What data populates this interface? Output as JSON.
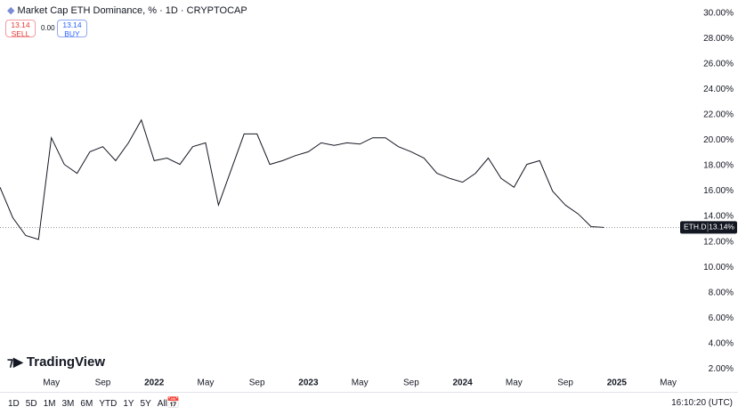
{
  "chart_data": {
    "type": "line",
    "title": "Market Cap ETH Dominance, % · 1D · CRYPTOCAP",
    "x": [
      "2021-01",
      "2021-02",
      "2021-03",
      "2021-04",
      "2021-05",
      "2021-06",
      "2021-07",
      "2021-08",
      "2021-09",
      "2021-10",
      "2021-11",
      "2021-12",
      "2022-01",
      "2022-02",
      "2022-03",
      "2022-04",
      "2022-05",
      "2022-06",
      "2022-07",
      "2022-08",
      "2022-09",
      "2022-10",
      "2022-11",
      "2022-12",
      "2023-01",
      "2023-02",
      "2023-03",
      "2023-04",
      "2023-05",
      "2023-06",
      "2023-07",
      "2023-08",
      "2023-09",
      "2023-10",
      "2023-11",
      "2023-12",
      "2024-01",
      "2024-02",
      "2024-03",
      "2024-04",
      "2024-05",
      "2024-06",
      "2024-07",
      "2024-08",
      "2024-09",
      "2024-10",
      "2024-11",
      "2024-12"
    ],
    "series": [
      {
        "name": "ETH.D",
        "color": "#131722",
        "values": [
          16.3,
          13.9,
          12.5,
          12.2,
          20.2,
          18.1,
          17.4,
          19.1,
          19.5,
          18.4,
          19.8,
          21.6,
          18.4,
          18.6,
          18.1,
          19.5,
          19.8,
          14.9,
          17.7,
          20.5,
          20.5,
          18.1,
          18.4,
          18.8,
          19.1,
          19.8,
          19.6,
          19.8,
          19.7,
          20.2,
          20.2,
          19.5,
          19.1,
          18.6,
          17.4,
          17.0,
          16.7,
          17.4,
          18.6,
          17.0,
          16.3,
          18.1,
          18.4,
          16.0,
          14.9,
          14.2,
          13.2,
          13.14
        ],
        "value_labels": [
          null,
          null,
          null,
          null,
          null,
          null,
          null,
          null,
          null,
          null,
          null,
          null,
          null,
          null,
          null,
          null,
          null,
          null,
          null,
          null,
          null,
          null,
          null,
          null,
          null,
          null,
          null,
          null,
          null,
          null,
          null,
          null,
          null,
          null,
          null,
          null,
          null,
          null,
          null,
          null,
          null,
          null,
          null,
          null,
          null,
          null,
          null,
          "13.14%"
        ]
      }
    ],
    "xlim": [
      "2021-01",
      "2025-06"
    ],
    "xticks": [
      {
        "value": "2021-05",
        "label": "May"
      },
      {
        "value": "2021-09",
        "label": "Sep"
      },
      {
        "value": "2022-01",
        "label": "2022"
      },
      {
        "value": "2022-05",
        "label": "May"
      },
      {
        "value": "2022-09",
        "label": "Sep"
      },
      {
        "value": "2023-01",
        "label": "2023"
      },
      {
        "value": "2023-05",
        "label": "May"
      },
      {
        "value": "2023-09",
        "label": "Sep"
      },
      {
        "value": "2024-01",
        "label": "2024"
      },
      {
        "value": "2024-05",
        "label": "May"
      },
      {
        "value": "2024-09",
        "label": "Sep"
      },
      {
        "value": "2025-01",
        "label": "2025"
      },
      {
        "value": "2025-05",
        "label": "May"
      }
    ],
    "ylim": [
      0.4,
      31.05
    ],
    "yticks": [
      {
        "value": 2,
        "label": "2.00%"
      },
      {
        "value": 4,
        "label": "4.00%"
      },
      {
        "value": 6,
        "label": "6.00%"
      },
      {
        "value": 8,
        "label": "8.00%"
      },
      {
        "value": 10,
        "label": "10.00%"
      },
      {
        "value": 12,
        "label": "12.00%"
      },
      {
        "value": 14,
        "label": "14.00%"
      },
      {
        "value": 16,
        "label": "16.00%"
      },
      {
        "value": 18,
        "label": "18.00%"
      },
      {
        "value": 20,
        "label": "20.00%"
      },
      {
        "value": 22,
        "label": "22.00%"
      },
      {
        "value": 24,
        "label": "24.00%"
      },
      {
        "value": 26,
        "label": "26.00%"
      },
      {
        "value": 28,
        "label": "28.00%"
      },
      {
        "value": 30,
        "label": "30.00%"
      }
    ],
    "grid": false
  },
  "ui": {
    "sell_price": "13.14",
    "sell": "SELL",
    "spread": "0.00",
    "buy_price": "13.14",
    "buy": "BUY",
    "brand": "TradingView",
    "ranges": [
      "1D",
      "5D",
      "1M",
      "3M",
      "6M",
      "YTD",
      "1Y",
      "5Y",
      "All"
    ],
    "clock": "16:10:20 (UTC)"
  }
}
